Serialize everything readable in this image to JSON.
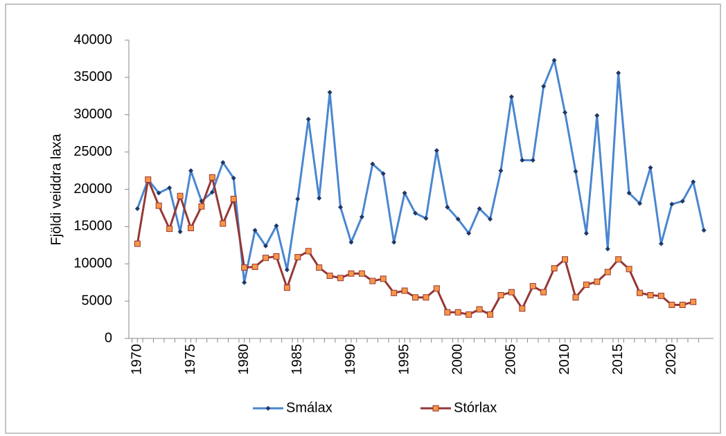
{
  "chart_data": {
    "type": "line",
    "ylabel": "Fjöldi veiddra laxa",
    "x": [
      1970,
      1971,
      1972,
      1973,
      1974,
      1975,
      1976,
      1977,
      1978,
      1979,
      1980,
      1981,
      1982,
      1983,
      1984,
      1985,
      1986,
      1987,
      1988,
      1989,
      1990,
      1991,
      1992,
      1993,
      1994,
      1995,
      1996,
      1997,
      1998,
      1999,
      2000,
      2001,
      2002,
      2003,
      2004,
      2005,
      2006,
      2007,
      2008,
      2009,
      2010,
      2011,
      2012,
      2013,
      2014,
      2015,
      2016,
      2017,
      2018,
      2019,
      2020,
      2021,
      2022,
      2023
    ],
    "series": [
      {
        "name": "Smálax",
        "color": "#4a86d0",
        "marker_color": "#1f3864",
        "values": [
          17400,
          21300,
          19500,
          20200,
          14300,
          22500,
          18400,
          19600,
          23600,
          21500,
          7500,
          14500,
          12400,
          15100,
          9200,
          18700,
          29400,
          18800,
          33000,
          17600,
          12900,
          16300,
          23400,
          22100,
          12900,
          19500,
          16800,
          16100,
          25200,
          17600,
          16000,
          14100,
          17400,
          16000,
          22500,
          32400,
          23900,
          23900,
          33800,
          37300,
          30300,
          22400,
          14100,
          29900,
          12000,
          35600,
          19500,
          18100,
          22900,
          12700,
          18000,
          18400,
          21000,
          14500
        ]
      },
      {
        "name": "Stórlax",
        "color": "#953735",
        "marker_color": "#f79646",
        "values": [
          12700,
          21300,
          17800,
          14700,
          19100,
          14800,
          17700,
          21600,
          15400,
          18700,
          9500,
          9600,
          10800,
          11000,
          6800,
          10900,
          11700,
          9500,
          8400,
          8100,
          8700,
          8700,
          7700,
          8000,
          6100,
          6400,
          5500,
          5500,
          6700,
          3500,
          3500,
          3200,
          3900,
          3200,
          5800,
          6200,
          4000,
          7000,
          6200,
          9400,
          10600,
          5500,
          7200,
          7600,
          8900,
          10600,
          9300,
          6100,
          5800,
          5700,
          4500,
          4500,
          4900,
          null
        ]
      }
    ],
    "xlim": [
      1969.2,
      2023.9
    ],
    "xticks": [
      1970,
      1975,
      1980,
      1985,
      1990,
      1995,
      2000,
      2005,
      2010,
      2015,
      2020
    ],
    "ylim": [
      0,
      40000
    ],
    "yticks": [
      0,
      5000,
      10000,
      15000,
      20000,
      25000,
      30000,
      35000,
      40000
    ],
    "legend": "bottom"
  }
}
